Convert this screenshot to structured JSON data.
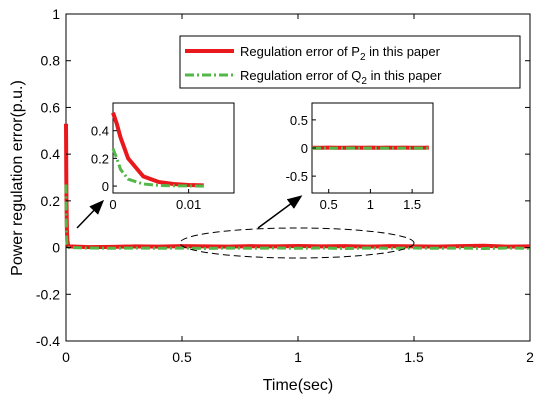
{
  "chart_data": {
    "type": "line",
    "title": "",
    "xlabel": "Time(sec)",
    "ylabel": "Power regulation error(p.u.)",
    "xlim": [
      0,
      2
    ],
    "ylim": [
      -0.4,
      1
    ],
    "xticks": [
      "0",
      "0.5",
      "1",
      "1.5",
      "2"
    ],
    "yticks": [
      "-0.4",
      "-0.2",
      "0",
      "0.2",
      "0.4",
      "0.6",
      "0.8",
      "1"
    ],
    "grid": false,
    "legend_position": "top-right",
    "series": [
      {
        "name": "Regulation error of  P2 in this paper",
        "legend_main": "Regulation error of   P",
        "legend_sub": "2",
        "legend_tail": " in this paper",
        "color": "#e8181c",
        "style": "solid",
        "x": [
          0,
          0.0005,
          0.001,
          0.002,
          0.004,
          0.006,
          0.008,
          0.01,
          0.012,
          0.1,
          0.2,
          0.3,
          0.4,
          0.5,
          0.6,
          0.7,
          0.8,
          0.9,
          1.0,
          1.1,
          1.2,
          1.3,
          1.4,
          1.5,
          1.6,
          1.7,
          1.8,
          1.9,
          2.0
        ],
        "y": [
          0.53,
          0.45,
          0.35,
          0.2,
          0.07,
          0.03,
          0.015,
          0.008,
          0.005,
          0.002,
          0.003,
          0.005,
          0.004,
          0.006,
          0.005,
          0.004,
          0.006,
          0.005,
          0.007,
          0.005,
          0.006,
          0.004,
          0.006,
          0.005,
          0.004,
          0.006,
          0.008,
          0.004,
          0.005
        ]
      },
      {
        "name": "Regulation error of Q2 in this paper",
        "legend_main": "Regulation error of  Q",
        "legend_sub": "2",
        "legend_tail": " in this paper",
        "color": "#52b848",
        "style": "dash-dot",
        "x": [
          0,
          0.0005,
          0.001,
          0.002,
          0.004,
          0.006,
          0.008,
          0.01,
          0.012,
          0.1,
          0.2,
          0.3,
          0.4,
          0.5,
          0.6,
          0.7,
          0.8,
          0.9,
          1.0,
          1.1,
          1.2,
          1.3,
          1.4,
          1.5,
          1.6,
          1.7,
          1.8,
          1.9,
          2.0
        ],
        "y": [
          0.27,
          0.2,
          0.12,
          0.05,
          0.015,
          0.005,
          0.002,
          0.001,
          0.0,
          -0.002,
          -0.003,
          -0.002,
          -0.003,
          -0.002,
          -0.004,
          -0.002,
          -0.003,
          -0.002,
          -0.003,
          -0.002,
          -0.004,
          -0.002,
          -0.003,
          -0.002,
          -0.003,
          -0.002,
          -0.004,
          -0.002,
          -0.003
        ]
      }
    ],
    "insets": [
      {
        "xlim": [
          0,
          0.016
        ],
        "ylim": [
          -0.05,
          0.6
        ],
        "xticks": [
          "0",
          "0.01"
        ],
        "yticks": [
          "0",
          "0.2",
          "0.4"
        ]
      },
      {
        "xlim": [
          0.3,
          1.75
        ],
        "ylim": [
          -0.8,
          0.8
        ],
        "xticks": [
          "0.5",
          "1",
          "1.5"
        ],
        "yticks": [
          "-0.5",
          "0",
          "0.5"
        ]
      }
    ]
  }
}
